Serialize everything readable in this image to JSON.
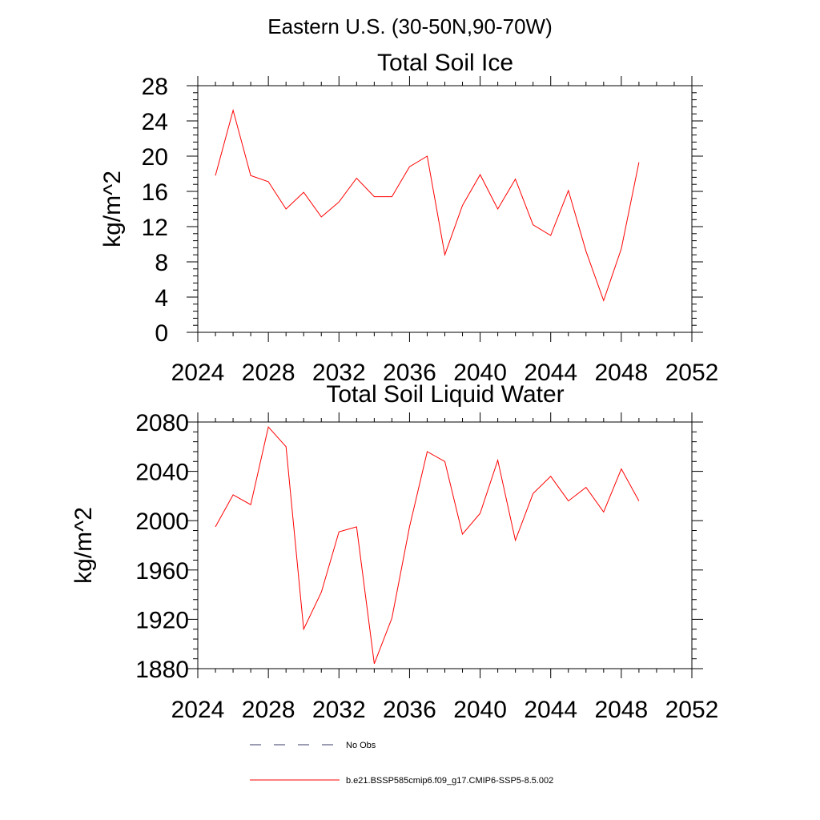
{
  "figure": {
    "suptitle": "Eastern U.S. (30-50N,90-70W)"
  },
  "chart_data": [
    {
      "type": "line",
      "title": "Total Soil Ice",
      "xlabel": "",
      "ylabel": "kg/m^2",
      "xlim": [
        2024,
        2052
      ],
      "ylim": [
        0,
        28
      ],
      "xticks": [
        2024,
        2028,
        2032,
        2036,
        2040,
        2044,
        2048,
        2052
      ],
      "yticks": [
        0,
        4,
        8,
        12,
        16,
        20,
        24,
        28
      ],
      "x": [
        2025,
        2026,
        2027,
        2028,
        2029,
        2030,
        2031,
        2032,
        2033,
        2034,
        2035,
        2036,
        2037,
        2038,
        2039,
        2040,
        2041,
        2042,
        2043,
        2044,
        2045,
        2046,
        2047,
        2048,
        2049
      ],
      "series": [
        {
          "color": "#ff0000",
          "values": [
            17.8,
            25.2,
            17.8,
            17.1,
            14.0,
            15.9,
            13.1,
            14.8,
            17.5,
            15.4,
            15.4,
            18.8,
            20.0,
            8.8,
            14.4,
            17.9,
            14.0,
            17.4,
            12.2,
            11.0,
            16.1,
            9.2,
            3.6,
            9.5,
            19.3
          ]
        }
      ],
      "grid": false
    },
    {
      "type": "line",
      "title": "Total Soil Liquid Water",
      "xlabel": "",
      "ylabel": "kg/m^2",
      "xlim": [
        2024,
        2052
      ],
      "ylim": [
        1880,
        2080
      ],
      "xticks": [
        2024,
        2028,
        2032,
        2036,
        2040,
        2044,
        2048,
        2052
      ],
      "yticks": [
        1880,
        1920,
        1960,
        2000,
        2040,
        2080
      ],
      "x": [
        2025,
        2026,
        2027,
        2028,
        2029,
        2030,
        2031,
        2032,
        2033,
        2034,
        2035,
        2036,
        2037,
        2038,
        2039,
        2040,
        2041,
        2042,
        2043,
        2044,
        2045,
        2046,
        2047,
        2048,
        2049
      ],
      "series": [
        {
          "color": "#ff0000",
          "values": [
            1995,
            2021,
            2013,
            2076,
            2060,
            1912,
            1942,
            1991,
            1995,
            1884,
            1921,
            1995,
            2056,
            2048,
            1989,
            2006,
            2049,
            1984,
            2022,
            2036,
            2016,
            2027,
            2007,
            2042,
            2016
          ]
        }
      ],
      "grid": false
    }
  ],
  "legend": {
    "placement": "bottom",
    "entries": [
      {
        "label": "No Obs",
        "color": "#3a3a66",
        "dash": "dashed"
      },
      {
        "label": "b.e21.BSSP585cmip6.f09_g17.CMIP6-SSP5-8.5.002",
        "color": "#ff0000",
        "dash": "solid"
      }
    ]
  }
}
